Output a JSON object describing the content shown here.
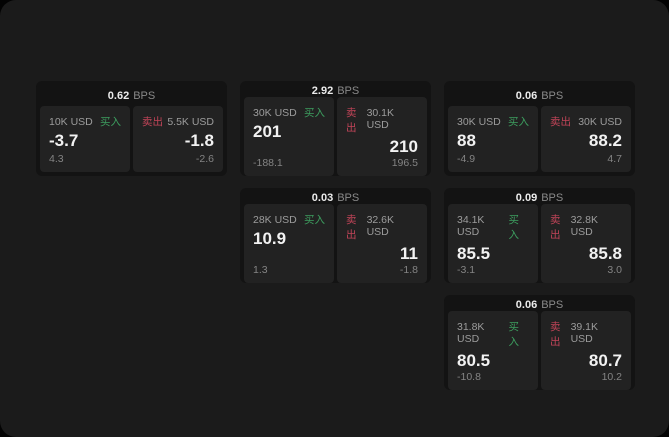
{
  "colors": {
    "buy": "#3d9e5f",
    "sell": "#c14458",
    "panel_bg": "#1b1b1b",
    "card_bg": "#131313",
    "tile_bg": "#222222"
  },
  "labels": {
    "bps": "BPS",
    "buy": "买入",
    "sell": "卖出"
  },
  "cards": [
    {
      "bps": "0.62",
      "buy": {
        "notional": "10K USD",
        "price": "-3.7",
        "sub": "4.3"
      },
      "sell": {
        "notional": "5.5K USD",
        "price": "-1.8",
        "sub": "-2.6"
      }
    },
    {
      "bps": "2.92",
      "buy": {
        "notional": "30K USD",
        "price": "201",
        "sub": "-188.1"
      },
      "sell": {
        "notional": "30.1K USD",
        "price": "210",
        "sub": "196.5"
      }
    },
    {
      "bps": "0.06",
      "buy": {
        "notional": "30K USD",
        "price": "88",
        "sub": "-4.9"
      },
      "sell": {
        "notional": "30K USD",
        "price": "88.2",
        "sub": "4.7"
      }
    },
    {
      "bps": "0.03",
      "buy": {
        "notional": "28K USD",
        "price": "10.9",
        "sub": "1.3"
      },
      "sell": {
        "notional": "32.6K USD",
        "price": "11",
        "sub": "-1.8"
      }
    },
    {
      "bps": "0.09",
      "buy": {
        "notional": "34.1K USD",
        "price": "85.5",
        "sub": "-3.1"
      },
      "sell": {
        "notional": "32.8K USD",
        "price": "85.8",
        "sub": "3.0"
      }
    },
    {
      "bps": "0.06",
      "buy": {
        "notional": "31.8K USD",
        "price": "80.5",
        "sub": "-10.8"
      },
      "sell": {
        "notional": "39.1K USD",
        "price": "80.7",
        "sub": "10.2"
      }
    }
  ]
}
